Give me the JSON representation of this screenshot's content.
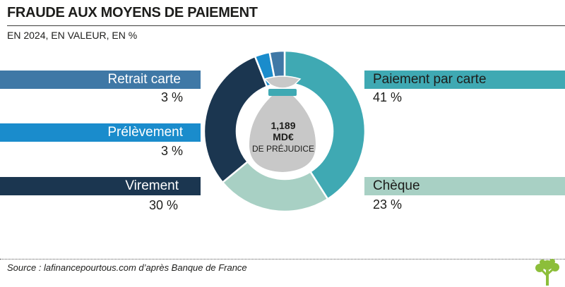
{
  "header": {
    "title": "FRAUDE AUX MOYENS DE PAIEMENT",
    "subtitle": "EN 2024, EN VALEUR, EN %"
  },
  "chart_data": {
    "type": "pie",
    "style": "donut",
    "title": "FRAUDE AUX MOYENS DE PAIEMENT",
    "subtitle": "EN 2024, EN VALEUR, EN %",
    "unit": "%",
    "series": [
      {
        "name": "Paiement par carte",
        "value": 41,
        "label": "41 %",
        "color": "#3fa9b3"
      },
      {
        "name": "Chèque",
        "value": 23,
        "label": "23 %",
        "color": "#a8d0c4"
      },
      {
        "name": "Virement",
        "value": 30,
        "label": "30 %",
        "color": "#1b3650"
      },
      {
        "name": "Prélèvement",
        "value": 3,
        "label": "3 %",
        "color": "#1a8ccc"
      },
      {
        "name": "Retrait carte",
        "value": 3,
        "label": "3 %",
        "color": "#3f78a6"
      }
    ],
    "center": {
      "value": "1,189",
      "unit": "MD€",
      "caption": "DE PRÉJUDICE"
    }
  },
  "footer": {
    "source": "Source : lafinancepourtous.com d’après Banque de France"
  }
}
